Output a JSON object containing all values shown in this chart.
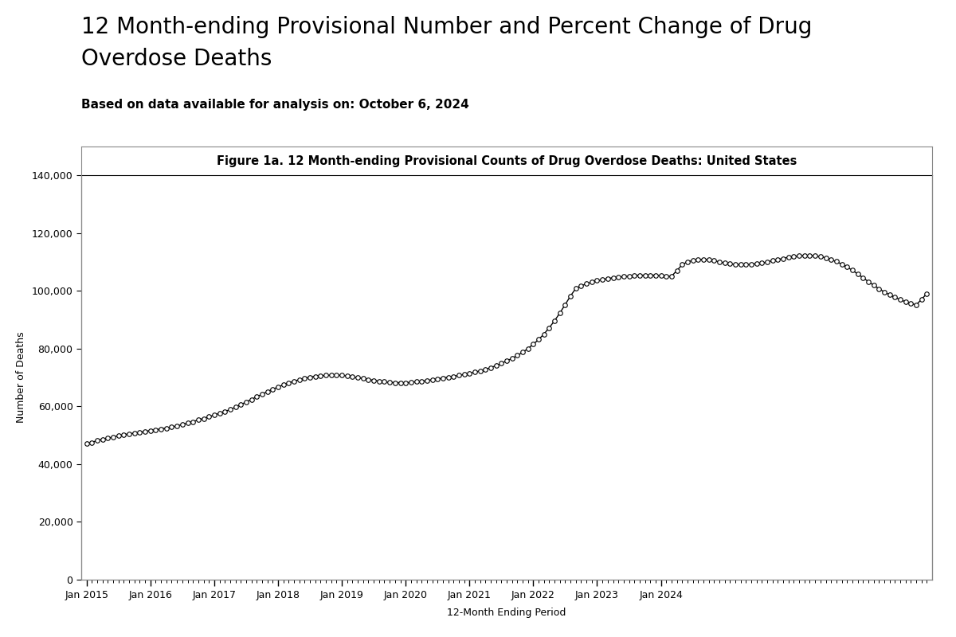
{
  "title_line1": "12 Month-ending Provisional Number and Percent Change of Drug",
  "title_line2": "Overdose Deaths",
  "subtitle": "Based on data available for analysis on: October 6, 2024",
  "figure_title": "Figure 1a. 12 Month-ending Provisional Counts of Drug Overdose Deaths: United States",
  "xlabel": "12-Month Ending Period",
  "ylabel": "Number of Deaths",
  "figure_title_bg": "#bdd7ee",
  "background_color": "#ffffff",
  "plot_bg": "#ffffff",
  "ylim": [
    0,
    140000
  ],
  "yticks": [
    0,
    20000,
    40000,
    60000,
    80000,
    100000,
    120000,
    140000
  ],
  "x_tick_labels": [
    "Jan 2015",
    "Jan 2016",
    "Jan 2017",
    "Jan 2018",
    "Jan 2019",
    "Jan 2020",
    "Jan 2021",
    "Jan 2022",
    "Jan 2023",
    "Jan 2024"
  ],
  "values": [
    47055,
    47500,
    48200,
    48600,
    49000,
    49400,
    49800,
    50200,
    50500,
    50700,
    51000,
    51300,
    51600,
    51900,
    52200,
    52500,
    52900,
    53200,
    53700,
    54200,
    54700,
    55300,
    55800,
    56400,
    57000,
    57600,
    58200,
    58900,
    59700,
    60600,
    61500,
    62400,
    63300,
    64200,
    65100,
    65900,
    66700,
    67400,
    68100,
    68700,
    69200,
    69700,
    70100,
    70400,
    70600,
    70700,
    70800,
    70800,
    70700,
    70500,
    70200,
    69900,
    69600,
    69300,
    69000,
    68700,
    68500,
    68300,
    68200,
    68200,
    68200,
    68300,
    68500,
    68700,
    68900,
    69200,
    69500,
    69800,
    70100,
    70400,
    70700,
    71000,
    71400,
    71800,
    72300,
    72800,
    73400,
    74100,
    74900,
    75700,
    76600,
    77600,
    78700,
    80000,
    81500,
    83100,
    85000,
    87200,
    89600,
    92300,
    95200,
    98200,
    100800,
    101700,
    102400,
    103000,
    103500,
    103900,
    104200,
    104500,
    104700,
    104900,
    105100,
    105300,
    105400,
    105400,
    105400,
    105400,
    105200,
    105100,
    105000,
    107000,
    109000,
    110000,
    110500,
    110800,
    110900,
    110700,
    110400,
    110000,
    109600,
    109300,
    109100,
    109000,
    109000,
    109200,
    109400,
    109600,
    110000,
    110400,
    110800,
    111200,
    111600,
    111900,
    112100,
    112200,
    112200,
    112100,
    111800,
    111400,
    110800,
    110100,
    109200,
    108200,
    107100,
    105800,
    104500,
    103200,
    101900,
    100700,
    99600,
    98600,
    97700,
    96900,
    96200,
    95600,
    95100,
    97000,
    99000
  ]
}
